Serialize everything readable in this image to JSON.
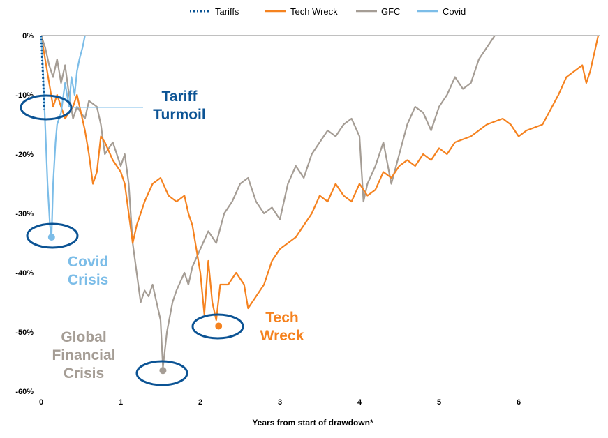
{
  "chart_data": {
    "type": "line",
    "title": "",
    "xlabel": "Years from start of drawdown*",
    "ylabel": "",
    "xlim": [
      0,
      7
    ],
    "ylim": [
      -60,
      0
    ],
    "x_ticks": [
      "0",
      "1",
      "2",
      "3",
      "4",
      "5",
      "6"
    ],
    "y_ticks": [
      "0%",
      "-10%",
      "-20%",
      "-30%",
      "-40%",
      "-50%",
      "-60%"
    ],
    "legend_position": "top",
    "series": [
      {
        "name": "Tariffs",
        "color": "#0b5394",
        "dash": true,
        "points": [
          [
            0,
            0
          ],
          [
            0.02,
            -6
          ],
          [
            0.04,
            -12.4
          ]
        ]
      },
      {
        "name": "Tech Wreck",
        "color": "#f5821f",
        "points": [
          [
            0,
            0
          ],
          [
            0.1,
            -8
          ],
          [
            0.15,
            -12
          ],
          [
            0.2,
            -10
          ],
          [
            0.3,
            -14
          ],
          [
            0.4,
            -12
          ],
          [
            0.45,
            -10
          ],
          [
            0.5,
            -13
          ],
          [
            0.55,
            -16
          ],
          [
            0.6,
            -20
          ],
          [
            0.65,
            -25
          ],
          [
            0.7,
            -23
          ],
          [
            0.75,
            -17
          ],
          [
            0.8,
            -18
          ],
          [
            0.9,
            -21
          ],
          [
            1.0,
            -23
          ],
          [
            1.05,
            -25
          ],
          [
            1.1,
            -30
          ],
          [
            1.15,
            -35
          ],
          [
            1.2,
            -32
          ],
          [
            1.3,
            -28
          ],
          [
            1.4,
            -25
          ],
          [
            1.5,
            -24
          ],
          [
            1.6,
            -27
          ],
          [
            1.7,
            -28
          ],
          [
            1.8,
            -27
          ],
          [
            1.85,
            -30
          ],
          [
            1.9,
            -32
          ],
          [
            2.0,
            -40
          ],
          [
            2.05,
            -47
          ],
          [
            2.1,
            -38
          ],
          [
            2.15,
            -45
          ],
          [
            2.2,
            -48
          ],
          [
            2.25,
            -42
          ],
          [
            2.35,
            -42
          ],
          [
            2.45,
            -40
          ],
          [
            2.55,
            -42
          ],
          [
            2.6,
            -46
          ],
          [
            2.7,
            -44
          ],
          [
            2.8,
            -42
          ],
          [
            2.9,
            -38
          ],
          [
            3.0,
            -36
          ],
          [
            3.1,
            -35
          ],
          [
            3.2,
            -34
          ],
          [
            3.3,
            -32
          ],
          [
            3.4,
            -30
          ],
          [
            3.5,
            -27
          ],
          [
            3.6,
            -28
          ],
          [
            3.7,
            -25
          ],
          [
            3.8,
            -27
          ],
          [
            3.9,
            -28
          ],
          [
            4.0,
            -25
          ],
          [
            4.1,
            -27
          ],
          [
            4.2,
            -26
          ],
          [
            4.3,
            -23
          ],
          [
            4.4,
            -24
          ],
          [
            4.5,
            -22
          ],
          [
            4.6,
            -21
          ],
          [
            4.7,
            -22
          ],
          [
            4.8,
            -20
          ],
          [
            4.9,
            -21
          ],
          [
            5.0,
            -19
          ],
          [
            5.1,
            -20
          ],
          [
            5.2,
            -18
          ],
          [
            5.4,
            -17
          ],
          [
            5.6,
            -15
          ],
          [
            5.8,
            -14
          ],
          [
            5.9,
            -15
          ],
          [
            6.0,
            -17
          ],
          [
            6.1,
            -16
          ],
          [
            6.3,
            -15
          ],
          [
            6.5,
            -10
          ],
          [
            6.6,
            -7
          ],
          [
            6.7,
            -6
          ],
          [
            6.8,
            -5
          ],
          [
            6.85,
            -8
          ],
          [
            6.9,
            -6
          ],
          [
            6.95,
            -3
          ],
          [
            7.0,
            0
          ]
        ]
      },
      {
        "name": "GFC",
        "color": "#a59d95",
        "points": [
          [
            0,
            0
          ],
          [
            0.05,
            -2
          ],
          [
            0.1,
            -5
          ],
          [
            0.15,
            -7
          ],
          [
            0.2,
            -4
          ],
          [
            0.25,
            -8
          ],
          [
            0.3,
            -5
          ],
          [
            0.35,
            -10
          ],
          [
            0.4,
            -14
          ],
          [
            0.45,
            -12
          ],
          [
            0.5,
            -13
          ],
          [
            0.55,
            -14
          ],
          [
            0.6,
            -11
          ],
          [
            0.7,
            -12
          ],
          [
            0.75,
            -15
          ],
          [
            0.8,
            -20
          ],
          [
            0.85,
            -19
          ],
          [
            0.9,
            -18
          ],
          [
            1.0,
            -22
          ],
          [
            1.05,
            -20
          ],
          [
            1.1,
            -25
          ],
          [
            1.15,
            -35
          ],
          [
            1.2,
            -40
          ],
          [
            1.25,
            -45
          ],
          [
            1.3,
            -43
          ],
          [
            1.35,
            -44
          ],
          [
            1.4,
            -42
          ],
          [
            1.45,
            -45
          ],
          [
            1.5,
            -48
          ],
          [
            1.53,
            -56
          ],
          [
            1.58,
            -50
          ],
          [
            1.65,
            -45
          ],
          [
            1.7,
            -43
          ],
          [
            1.8,
            -40
          ],
          [
            1.85,
            -42
          ],
          [
            1.9,
            -39
          ],
          [
            2.0,
            -36
          ],
          [
            2.1,
            -33
          ],
          [
            2.2,
            -35
          ],
          [
            2.3,
            -30
          ],
          [
            2.4,
            -28
          ],
          [
            2.5,
            -25
          ],
          [
            2.6,
            -24
          ],
          [
            2.7,
            -28
          ],
          [
            2.8,
            -30
          ],
          [
            2.9,
            -29
          ],
          [
            3.0,
            -31
          ],
          [
            3.1,
            -25
          ],
          [
            3.2,
            -22
          ],
          [
            3.3,
            -24
          ],
          [
            3.4,
            -20
          ],
          [
            3.5,
            -18
          ],
          [
            3.6,
            -16
          ],
          [
            3.7,
            -17
          ],
          [
            3.8,
            -15
          ],
          [
            3.9,
            -14
          ],
          [
            4.0,
            -17
          ],
          [
            4.05,
            -28
          ],
          [
            4.1,
            -25
          ],
          [
            4.2,
            -22
          ],
          [
            4.3,
            -18
          ],
          [
            4.4,
            -25
          ],
          [
            4.5,
            -20
          ],
          [
            4.6,
            -15
          ],
          [
            4.7,
            -12
          ],
          [
            4.8,
            -13
          ],
          [
            4.9,
            -16
          ],
          [
            5.0,
            -12
          ],
          [
            5.1,
            -10
          ],
          [
            5.2,
            -7
          ],
          [
            5.3,
            -9
          ],
          [
            5.4,
            -8
          ],
          [
            5.5,
            -4
          ],
          [
            5.6,
            -2
          ],
          [
            5.7,
            0
          ]
        ]
      },
      {
        "name": "Covid",
        "color": "#7cbde8",
        "points": [
          [
            0,
            0
          ],
          [
            0.02,
            -5
          ],
          [
            0.05,
            -15
          ],
          [
            0.08,
            -25
          ],
          [
            0.11,
            -32
          ],
          [
            0.13,
            -34
          ],
          [
            0.15,
            -25
          ],
          [
            0.18,
            -18
          ],
          [
            0.2,
            -15
          ],
          [
            0.25,
            -13
          ],
          [
            0.3,
            -8
          ],
          [
            0.35,
            -12
          ],
          [
            0.38,
            -7
          ],
          [
            0.42,
            -10
          ],
          [
            0.45,
            -6
          ],
          [
            0.48,
            -4
          ],
          [
            0.52,
            -2
          ],
          [
            0.55,
            0
          ]
        ]
      }
    ],
    "annotations": [
      {
        "label": [
          "Tariff",
          "Turmoil"
        ],
        "color": "#0b5394",
        "at": [
          0.04,
          -12
        ]
      },
      {
        "label": [
          "Covid",
          "Crisis"
        ],
        "color": "#7cbde8",
        "at": [
          0.13,
          -34
        ]
      },
      {
        "label": [
          "Global",
          "Financial",
          "Crisis"
        ],
        "color": "#a59d95",
        "at": [
          1.53,
          -56.5
        ]
      },
      {
        "label": [
          "Tech",
          "Wreck"
        ],
        "color": "#f5821f",
        "at": [
          2.23,
          -49
        ]
      }
    ]
  }
}
